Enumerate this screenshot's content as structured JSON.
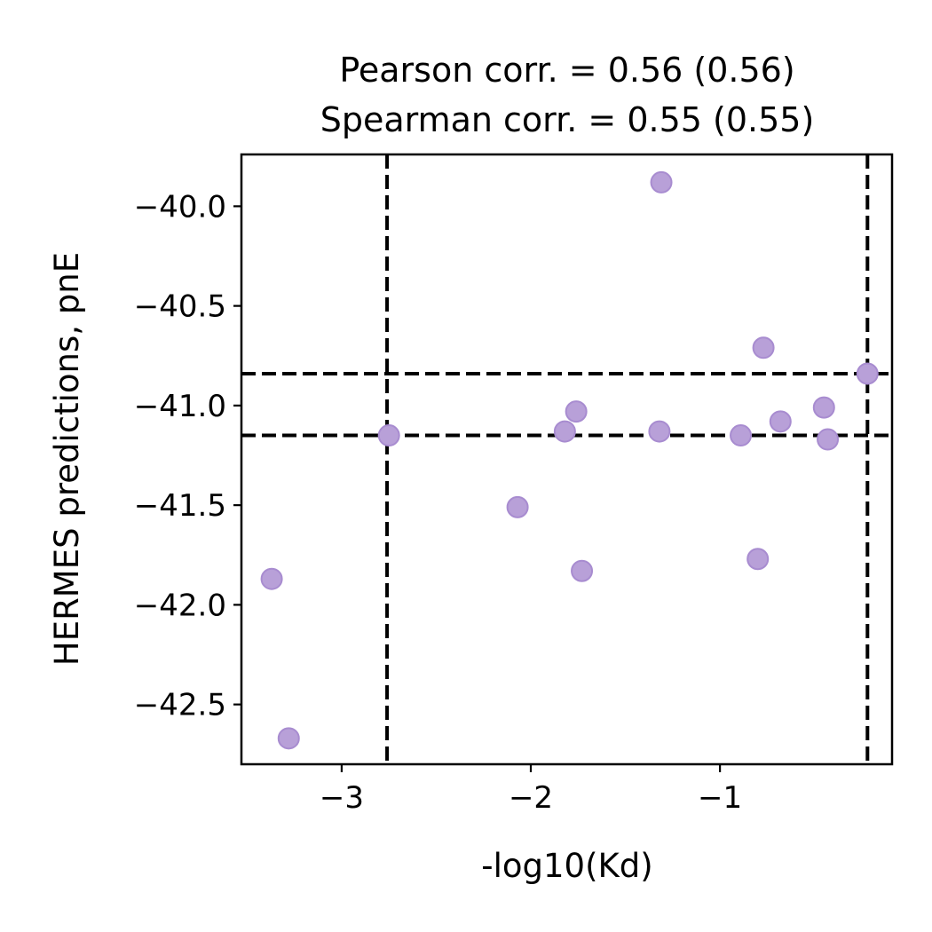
{
  "chart_data": {
    "type": "scatter",
    "title_lines": [
      "Pearson corr. = 0.56 (0.56)",
      "Spearman corr. = 0.55 (0.55)"
    ],
    "xlabel": "-log10(Kd)",
    "ylabel": "HERMES predictions, pnE",
    "xlim": [
      -3.53,
      -0.09
    ],
    "ylim": [
      -42.8,
      -39.74
    ],
    "xticks": [
      {
        "value": -3,
        "label": "−3"
      },
      {
        "value": -2,
        "label": "−2"
      },
      {
        "value": -1,
        "label": "−1"
      }
    ],
    "yticks": [
      {
        "value": -40.0,
        "label": "−40.0"
      },
      {
        "value": -40.5,
        "label": "−40.5"
      },
      {
        "value": -41.0,
        "label": "−41.0"
      },
      {
        "value": -41.5,
        "label": "−41.5"
      },
      {
        "value": -42.0,
        "label": "−42.0"
      },
      {
        "value": -42.5,
        "label": "−42.5"
      }
    ],
    "grid": false,
    "point_color": "#b8a0d8",
    "point_edge_color": "#a88cd0",
    "points": [
      {
        "x": -1.31,
        "y": -39.88
      },
      {
        "x": -0.77,
        "y": -40.71
      },
      {
        "x": -0.22,
        "y": -40.84
      },
      {
        "x": -1.76,
        "y": -41.03
      },
      {
        "x": -0.45,
        "y": -41.01
      },
      {
        "x": -0.68,
        "y": -41.08
      },
      {
        "x": -2.75,
        "y": -41.15
      },
      {
        "x": -1.82,
        "y": -41.13
      },
      {
        "x": -1.32,
        "y": -41.13
      },
      {
        "x": -0.89,
        "y": -41.15
      },
      {
        "x": -0.43,
        "y": -41.17
      },
      {
        "x": -2.07,
        "y": -41.51
      },
      {
        "x": -1.73,
        "y": -41.83
      },
      {
        "x": -0.8,
        "y": -41.77
      },
      {
        "x": -3.37,
        "y": -41.87
      },
      {
        "x": -3.28,
        "y": -42.67
      }
    ],
    "reference_lines": {
      "vertical": [
        -2.76,
        -0.22
      ],
      "horizontal": [
        -40.84,
        -41.15
      ],
      "style": "dashed",
      "color": "#000000"
    }
  }
}
